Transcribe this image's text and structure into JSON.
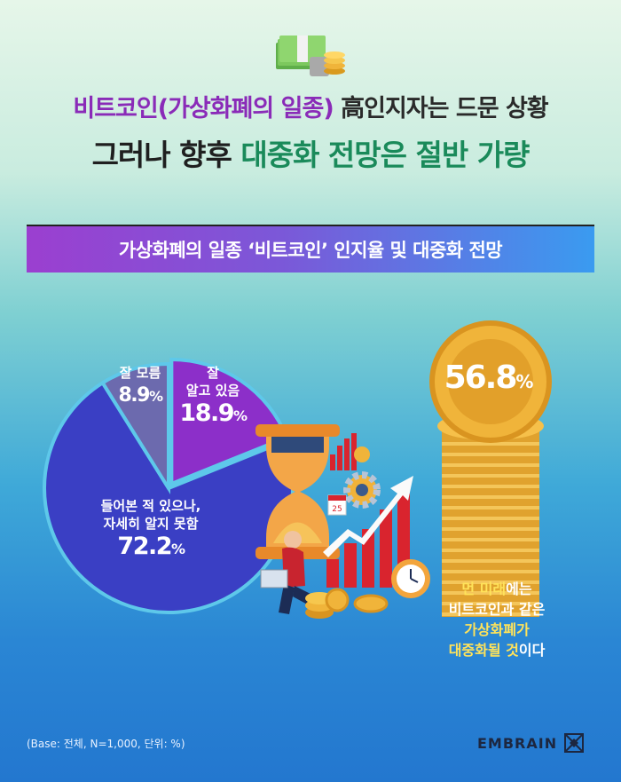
{
  "header": {
    "line1_accent": "비트코인(가상화폐의 일종)",
    "line1_rest": " 高인지자는 드문 상황",
    "line2_plain": "그러나 향후 ",
    "line2_accent": "대중화 전망은 절반 가량"
  },
  "subtitle": "가상화폐의 일종 ‘비트코인’ 인지율 및 대중화 전망",
  "chart_data": [
    {
      "type": "pie",
      "title": "",
      "slices": [
        {
          "label": "잘 알고 있음",
          "value": 18.9,
          "color": "#8c2fc9"
        },
        {
          "label": "들어본 적 있으나, 자세히 알지 못함",
          "value": 72.2,
          "color": "#3a3fc4"
        },
        {
          "label": "잘 모름",
          "value": 8.9,
          "color": "#6c6aae"
        }
      ]
    },
    {
      "type": "bar",
      "title": "",
      "categories": [
        "먼 미래에는 비트코인과 같은 가상화폐가 대중화될 것이다"
      ],
      "values": [
        56.8
      ]
    }
  ],
  "pie_labels": {
    "know": {
      "line1": "잘",
      "line2": "알고 있음",
      "pct": "18.9",
      "unit": "%"
    },
    "heard": {
      "line1": "들어본 적 있으나,",
      "line2": "자세히 알지 못함",
      "pct": "72.2",
      "unit": "%"
    },
    "unknown": {
      "line1": "잘 모름",
      "pct": "8.9",
      "unit": "%"
    }
  },
  "coin": {
    "pct": "56.8",
    "unit": "%",
    "caption_l1_y": "먼 미래",
    "caption_l1": "에는",
    "caption_l2": "비트코인과 같은",
    "caption_l3_y": "가상화폐가",
    "caption_l4_y": "대중화될 것",
    "caption_l4": "이다"
  },
  "illustration": {
    "calendar_day": "25"
  },
  "footnote": "(Base: 전체, N=1,000, 단위: %)",
  "logo": {
    "text": "EMBRAIN"
  },
  "colors": {
    "accent_purple": "#8a2bb8",
    "accent_green": "#1a8a5a",
    "caption_yellow": "#ffe35a",
    "coin_gold": "#f0b43a"
  },
  "icons": [
    "money-stack-icon",
    "hourglass-icon",
    "businessman-icon",
    "trend-arrow-icon",
    "gear-icon",
    "calendar-icon",
    "alarm-clock-icon",
    "coin-stack-icon",
    "embrain-logo-icon"
  ]
}
